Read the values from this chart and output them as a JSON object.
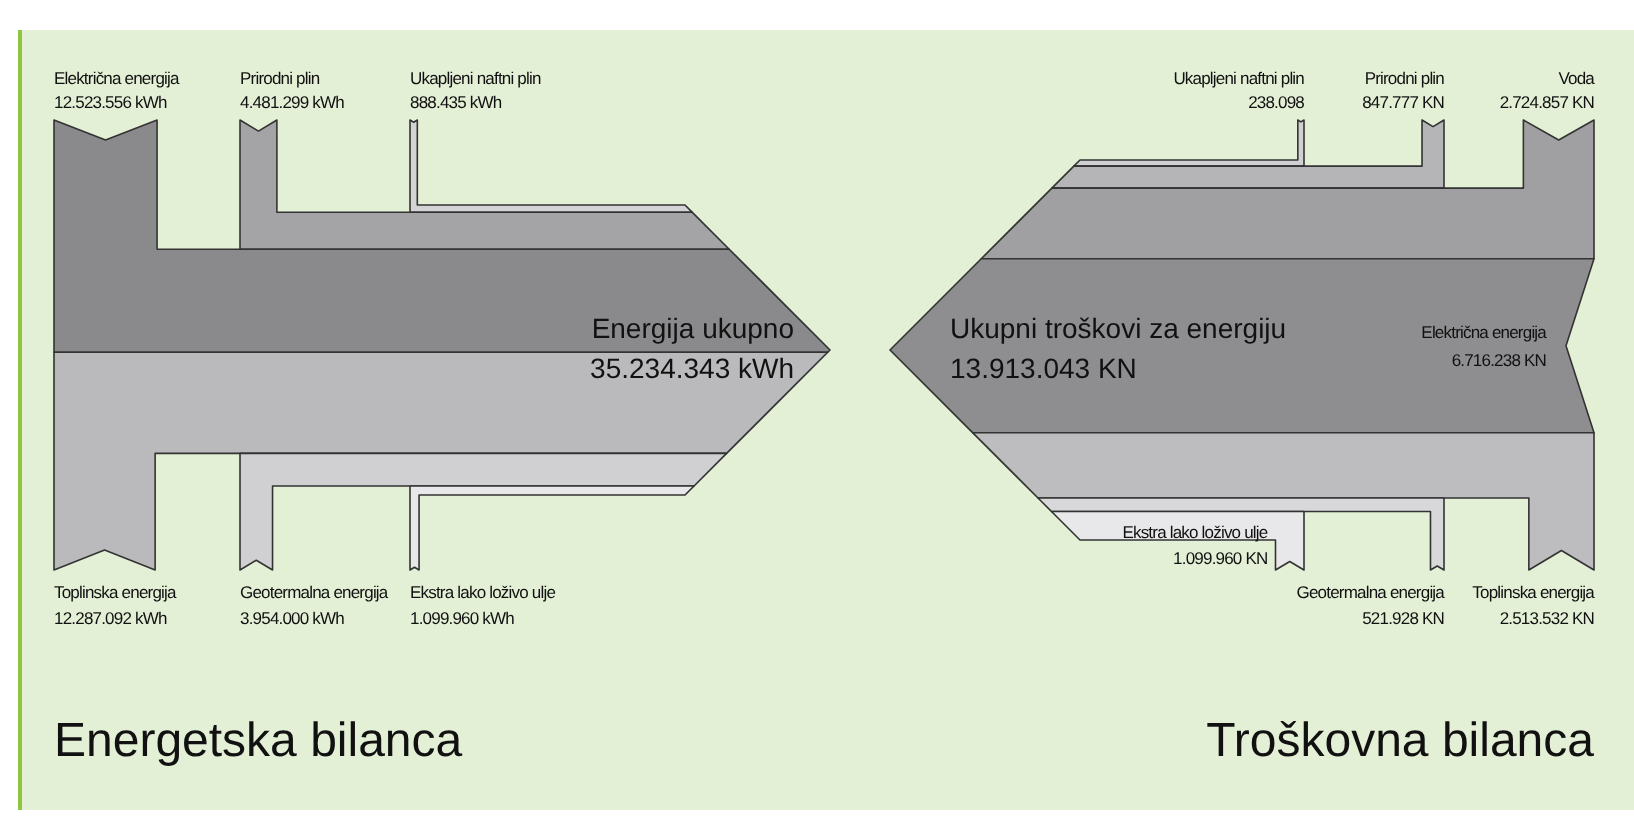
{
  "chart_data": [
    {
      "type": "other",
      "title": "Energetska bilanca",
      "annotations": [
        "Energija ukupno"
      ],
      "totals": [
        "35.234.343 kWh"
      ],
      "categories": [
        "Električna energija",
        "Prirodni plin",
        "Ukapljeni naftni plin",
        "Toplinska energija",
        "Geotermalna energija",
        "Ekstra lako loživo ulje"
      ],
      "colors": [
        "#8a8a8c",
        "#a4a4a6",
        "#d4d4d6",
        "#bababc",
        "#d0d0d2",
        "#e8e8ea"
      ],
      "series": [
        {
          "values": [
            12523556,
            4481299,
            888435,
            null,
            null,
            null
          ],
          "value_labels": [
            "12.523.556 kWh",
            "4.481.299 kWh",
            "888.435 kWh",
            null,
            null,
            null
          ]
        },
        {
          "values": [
            null,
            null,
            null,
            12287092,
            3954000,
            1099960
          ],
          "value_labels": [
            null,
            null,
            null,
            "12.287.092 kWh",
            "3.954.000 kWh",
            "1.099.960 kWh"
          ]
        }
      ]
    },
    {
      "type": "other",
      "title": "Troškovna bilanca",
      "annotations": [
        "Ukupni troškovi za energiju"
      ],
      "totals": [
        "13.913.043 KN"
      ],
      "categories": [
        "Ukapljeni naftni plin",
        "Prirodni plin",
        "Voda",
        "Električna energija",
        "Ekstra lako loživo ulje",
        "Geotermalna energija",
        "Toplinska energija"
      ],
      "colors": [
        "#d0d0d2",
        "#b5b5b7",
        "#a0a0a2",
        "#8e8e90",
        "#e8e8ea",
        "#d8d8da",
        "#bdbdbf"
      ],
      "series": [
        {
          "values": [
            238098,
            847777,
            2724857,
            null,
            null,
            null,
            null
          ],
          "value_labels": [
            "238.098",
            "847.777 KN",
            "2.724.857 KN",
            null,
            null,
            null,
            null
          ]
        },
        {
          "values": [
            null,
            null,
            null,
            null,
            1099960,
            521928,
            2513532
          ],
          "value_labels": [
            null,
            null,
            null,
            null,
            "1.099.960 KN",
            "521.928 KN",
            "2.513.532 KN"
          ]
        },
        {
          "values": [
            null,
            null,
            null,
            6716238,
            null,
            null,
            null
          ],
          "value_labels": [
            null,
            null,
            null,
            "6.716.238 KN",
            null,
            null,
            null
          ]
        }
      ]
    }
  ]
}
